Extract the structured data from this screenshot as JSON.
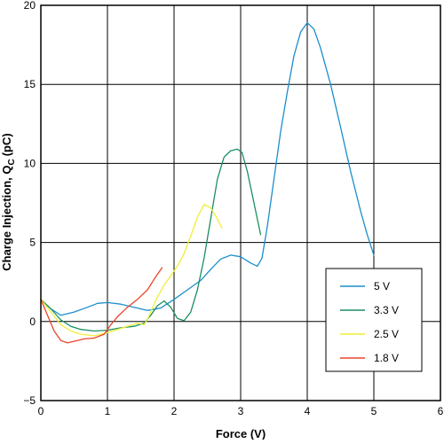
{
  "chart_data": {
    "type": "line",
    "title": "",
    "xlabel": "Force (V)",
    "ylabel": "Charge Injection, Q",
    "ylabel_subscript": "C",
    "ylabel_unit": "(pC)",
    "xlim": [
      0,
      6
    ],
    "ylim": [
      -5,
      20
    ],
    "xticks": [
      0,
      1,
      2,
      3,
      4,
      5,
      6
    ],
    "yticks": [
      -5,
      0,
      5,
      10,
      15,
      20
    ],
    "xtick_labels": [
      "0",
      "1",
      "2",
      "3",
      "4",
      "5",
      "6"
    ],
    "ytick_labels": [
      "−5",
      "0",
      "5",
      "10",
      "15",
      "20"
    ],
    "grid": true,
    "legend_position": "bottom-right",
    "series": [
      {
        "name": "5 V",
        "color": "#1b8ecb",
        "points": [
          [
            0.0,
            1.4
          ],
          [
            0.15,
            0.8
          ],
          [
            0.3,
            0.4
          ],
          [
            0.5,
            0.6
          ],
          [
            0.7,
            0.9
          ],
          [
            0.85,
            1.15
          ],
          [
            1.0,
            1.2
          ],
          [
            1.2,
            1.1
          ],
          [
            1.4,
            0.9
          ],
          [
            1.6,
            0.7
          ],
          [
            1.8,
            0.85
          ],
          [
            2.0,
            1.4
          ],
          [
            2.2,
            2.0
          ],
          [
            2.4,
            2.6
          ],
          [
            2.55,
            3.3
          ],
          [
            2.7,
            3.95
          ],
          [
            2.85,
            4.2
          ],
          [
            3.0,
            4.1
          ],
          [
            3.15,
            3.7
          ],
          [
            3.25,
            3.5
          ],
          [
            3.32,
            4.0
          ],
          [
            3.4,
            6.0
          ],
          [
            3.5,
            9.0
          ],
          [
            3.6,
            12.0
          ],
          [
            3.7,
            14.5
          ],
          [
            3.8,
            16.8
          ],
          [
            3.9,
            18.3
          ],
          [
            4.0,
            18.9
          ],
          [
            4.1,
            18.5
          ],
          [
            4.2,
            17.3
          ],
          [
            4.35,
            15.0
          ],
          [
            4.5,
            12.3
          ],
          [
            4.65,
            9.5
          ],
          [
            4.8,
            7.0
          ],
          [
            4.9,
            5.5
          ],
          [
            5.0,
            4.2
          ]
        ]
      },
      {
        "name": "3.3 V",
        "color": "#1a8f60",
        "points": [
          [
            0.0,
            1.4
          ],
          [
            0.15,
            0.8
          ],
          [
            0.3,
            0.1
          ],
          [
            0.45,
            -0.3
          ],
          [
            0.6,
            -0.5
          ],
          [
            0.8,
            -0.6
          ],
          [
            1.0,
            -0.55
          ],
          [
            1.2,
            -0.4
          ],
          [
            1.4,
            -0.3
          ],
          [
            1.55,
            -0.1
          ],
          [
            1.65,
            0.4
          ],
          [
            1.75,
            1.0
          ],
          [
            1.85,
            1.3
          ],
          [
            1.95,
            0.9
          ],
          [
            2.05,
            0.2
          ],
          [
            2.15,
            0.05
          ],
          [
            2.25,
            0.6
          ],
          [
            2.35,
            2.0
          ],
          [
            2.45,
            4.0
          ],
          [
            2.55,
            6.5
          ],
          [
            2.65,
            9.0
          ],
          [
            2.75,
            10.4
          ],
          [
            2.85,
            10.8
          ],
          [
            2.95,
            10.9
          ],
          [
            3.02,
            10.7
          ],
          [
            3.1,
            9.5
          ],
          [
            3.2,
            7.5
          ],
          [
            3.3,
            5.5
          ]
        ]
      },
      {
        "name": "2.5 V",
        "color": "#f2ee38",
        "points": [
          [
            0.0,
            1.4
          ],
          [
            0.15,
            0.6
          ],
          [
            0.3,
            -0.2
          ],
          [
            0.45,
            -0.6
          ],
          [
            0.6,
            -0.8
          ],
          [
            0.8,
            -0.9
          ],
          [
            1.0,
            -0.7
          ],
          [
            1.15,
            -0.5
          ],
          [
            1.3,
            -0.3
          ],
          [
            1.45,
            -0.1
          ],
          [
            1.55,
            -0.2
          ],
          [
            1.62,
            0.3
          ],
          [
            1.72,
            1.3
          ],
          [
            1.85,
            2.3
          ],
          [
            1.95,
            2.9
          ],
          [
            2.05,
            3.5
          ],
          [
            2.15,
            4.3
          ],
          [
            2.25,
            5.4
          ],
          [
            2.35,
            6.6
          ],
          [
            2.45,
            7.4
          ],
          [
            2.55,
            7.2
          ],
          [
            2.65,
            6.5
          ],
          [
            2.72,
            5.9
          ]
        ]
      },
      {
        "name": "1.8 V",
        "color": "#e8452a",
        "points": [
          [
            0.0,
            1.4
          ],
          [
            0.1,
            0.4
          ],
          [
            0.2,
            -0.6
          ],
          [
            0.3,
            -1.2
          ],
          [
            0.4,
            -1.35
          ],
          [
            0.5,
            -1.25
          ],
          [
            0.65,
            -1.1
          ],
          [
            0.8,
            -1.05
          ],
          [
            0.95,
            -0.8
          ],
          [
            1.05,
            -0.2
          ],
          [
            1.15,
            0.3
          ],
          [
            1.3,
            0.9
          ],
          [
            1.45,
            1.4
          ],
          [
            1.6,
            2.0
          ],
          [
            1.72,
            2.8
          ],
          [
            1.82,
            3.4
          ]
        ]
      }
    ]
  }
}
